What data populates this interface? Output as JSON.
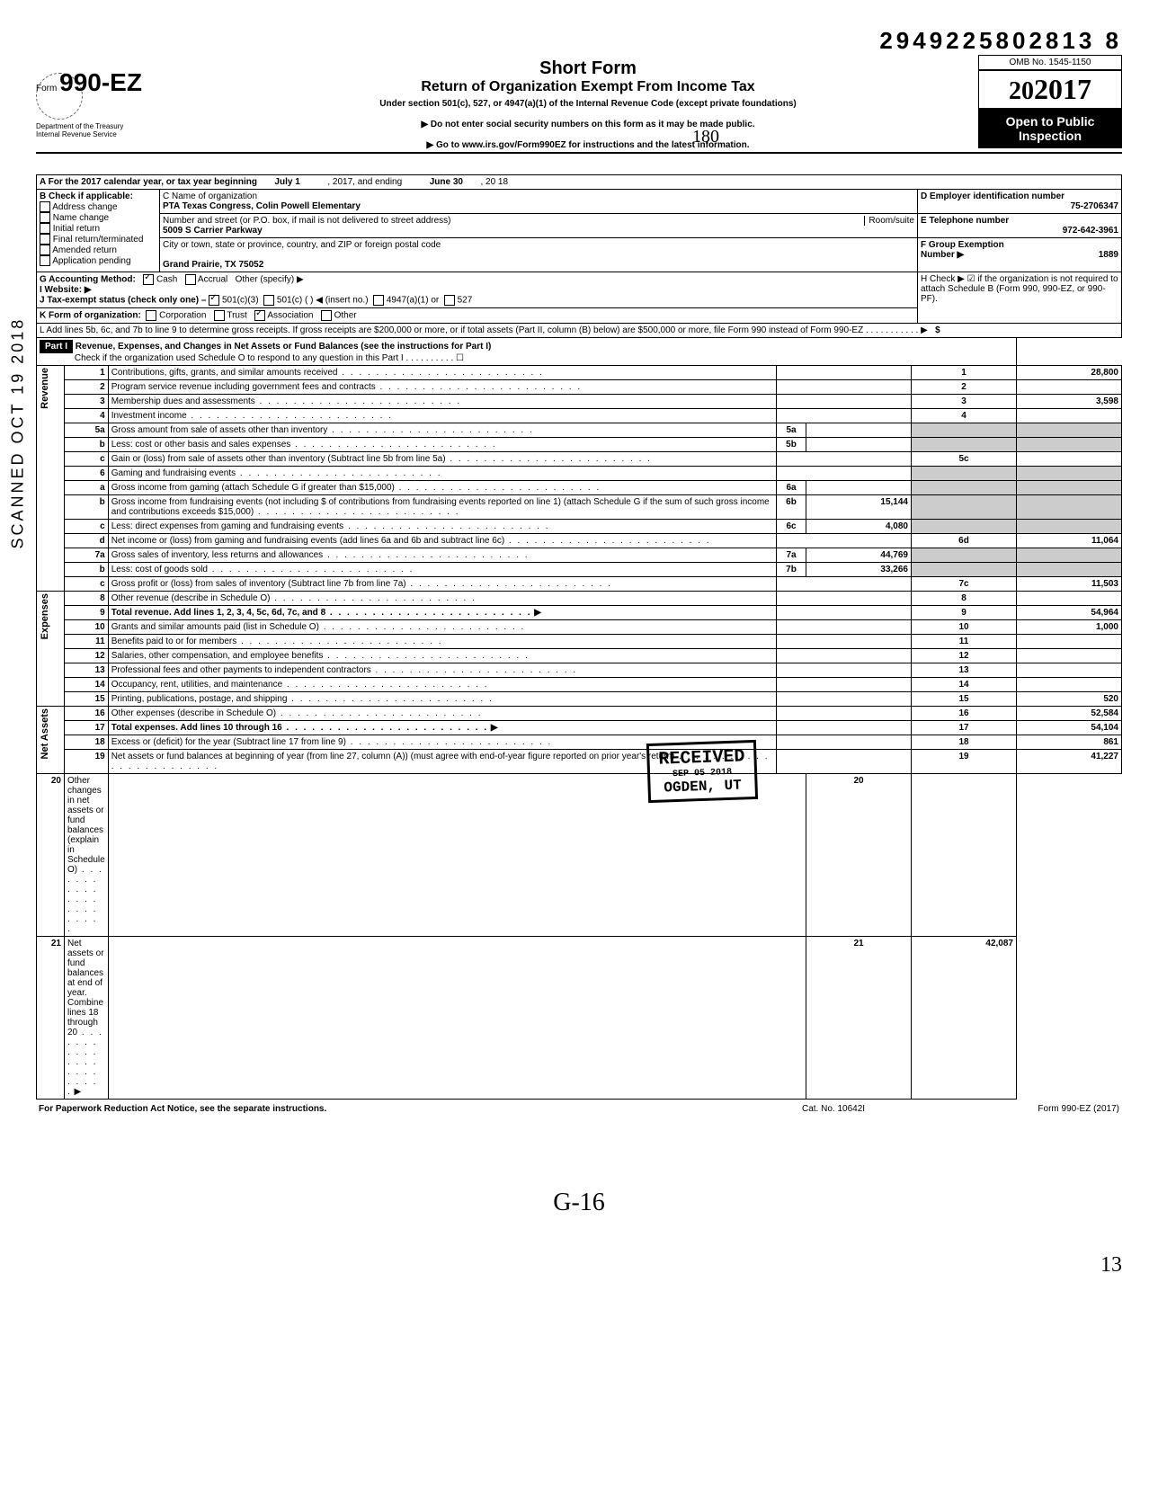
{
  "top_number": "2949225802813   8",
  "omb": "OMB No. 1545-1150",
  "year": "2017",
  "form_label": "Form",
  "form_no": "990-EZ",
  "title_short": "Short Form",
  "title_main": "Return of Organization Exempt From Income Tax",
  "title_sub": "Under section 501(c), 527, or 4947(a)(1) of the Internal Revenue Code (except private foundations)",
  "instr1": "▶ Do not enter social security numbers on this form as it may be made public.",
  "instr2": "▶ Go to www.irs.gov/Form990EZ for instructions and the latest information.",
  "dept": "Department of the Treasury\nInternal Revenue Service",
  "open": "Open to Public\nInspection",
  "rowA": {
    "label": "A For the 2017 calendar year, or tax year beginning",
    "start": "July 1",
    "mid": ", 2017, and ending",
    "end": "June 30",
    "yr": ", 20   18"
  },
  "rowB": {
    "label": "B Check if applicable:",
    "items": [
      "Address change",
      "Name change",
      "Initial return",
      "Final return/terminated",
      "Amended return",
      "Application pending"
    ]
  },
  "C_label": "C Name of organization",
  "C_val": "PTA Texas Congress, Colin Powell Elementary",
  "addr_label": "Number and street (or P.O. box, if mail is not delivered to street address)",
  "addr": "5009 S Carrier Parkway",
  "room": "Room/suite",
  "city_label": "City or town, state or province, country, and ZIP or foreign postal code",
  "city": "Grand Prairie, TX 75052",
  "D_label": "D Employer identification number",
  "D_val": "75-2706347",
  "E_label": "E Telephone number",
  "E_val": "972-642-3961",
  "F_label": "F Group Exemption\nNumber ▶",
  "F_val": "1889",
  "G": "G Accounting Method:",
  "G_cash": "Cash",
  "G_accrual": "Accrual",
  "G_other": "Other (specify) ▶",
  "H": "H Check ▶ ☑ if the organization is not required to attach Schedule B (Form 990, 990-EZ, or 990-PF).",
  "I": "I  Website: ▶",
  "J": "J Tax-exempt status (check only one) –",
  "J1": "501(c)(3)",
  "J2": "501(c) (       ) ◀ (insert no.)",
  "J3": "4947(a)(1) or",
  "J4": "527",
  "K": "K Form of organization:",
  "K1": "Corporation",
  "K2": "Trust",
  "K3": "Association",
  "K4": "Other",
  "L": "L Add lines 5b, 6c, and 7b to line 9 to determine gross receipts. If gross receipts are $200,000 or more, or if total assets (Part II, column (B) below) are $500,000 or more, file Form 990 instead of Form 990-EZ . . . . . . . . . . . ▶",
  "L_amt": "$",
  "part1": "Part I",
  "part1_title": "Revenue, Expenses, and Changes in Net Assets or Fund Balances (see the instructions for Part I)",
  "part1_sub": "Check if the organization used Schedule O to respond to any question in this Part I . . . . . . . . . . ☐",
  "lines": [
    {
      "n": "1",
      "t": "Contributions, gifts, grants, and similar amounts received",
      "a": "28,800"
    },
    {
      "n": "2",
      "t": "Program service revenue including government fees and contracts",
      "a": ""
    },
    {
      "n": "3",
      "t": "Membership dues and assessments",
      "a": "3,598"
    },
    {
      "n": "4",
      "t": "Investment income",
      "a": ""
    },
    {
      "n": "5a",
      "t": "Gross amount from sale of assets other than inventory",
      "box": "5a",
      "boxv": ""
    },
    {
      "n": "b",
      "t": "Less: cost or other basis and sales expenses",
      "box": "5b",
      "boxv": ""
    },
    {
      "n": "c",
      "t": "Gain or (loss) from sale of assets other than inventory (Subtract line 5b from line 5a)",
      "num": "5c",
      "a": ""
    },
    {
      "n": "6",
      "t": "Gaming and fundraising events"
    },
    {
      "n": "a",
      "t": "Gross income from gaming (attach Schedule G if greater than $15,000)",
      "box": "6a",
      "boxv": ""
    },
    {
      "n": "b",
      "t": "Gross income from fundraising events (not including  $                  of contributions from fundraising events reported on line 1) (attach Schedule G if the sum of such gross income and contributions exceeds $15,000)",
      "box": "6b",
      "boxv": "15,144"
    },
    {
      "n": "c",
      "t": "Less: direct expenses from gaming and fundraising events",
      "box": "6c",
      "boxv": "4,080"
    },
    {
      "n": "d",
      "t": "Net income or (loss) from gaming and fundraising events (add lines 6a and 6b and subtract line 6c)",
      "num": "6d",
      "a": "11,064"
    },
    {
      "n": "7a",
      "t": "Gross sales of inventory, less returns and allowances",
      "box": "7a",
      "boxv": "44,769"
    },
    {
      "n": "b",
      "t": "Less: cost of goods sold",
      "box": "7b",
      "boxv": "33,266"
    },
    {
      "n": "c",
      "t": "Gross profit or (loss) from sales of inventory (Subtract line 7b from line 7a)",
      "num": "7c",
      "a": "11,503"
    },
    {
      "n": "8",
      "t": "Other revenue (describe in Schedule O)",
      "num": "8",
      "a": ""
    },
    {
      "n": "9",
      "t": "Total revenue. Add lines 1, 2, 3, 4, 5c, 6d, 7c, and 8",
      "num": "9",
      "a": "54,964",
      "bold": true
    },
    {
      "n": "10",
      "t": "Grants and similar amounts paid (list in Schedule O)",
      "num": "10",
      "a": "1,000"
    },
    {
      "n": "11",
      "t": "Benefits paid to or for members",
      "num": "11",
      "a": ""
    },
    {
      "n": "12",
      "t": "Salaries, other compensation, and employee benefits",
      "num": "12",
      "a": ""
    },
    {
      "n": "13",
      "t": "Professional fees and other payments to independent contractors",
      "num": "13",
      "a": ""
    },
    {
      "n": "14",
      "t": "Occupancy, rent, utilities, and maintenance",
      "num": "14",
      "a": ""
    },
    {
      "n": "15",
      "t": "Printing, publications, postage, and shipping",
      "num": "15",
      "a": "520"
    },
    {
      "n": "16",
      "t": "Other expenses (describe in Schedule O)",
      "num": "16",
      "a": "52,584"
    },
    {
      "n": "17",
      "t": "Total expenses. Add lines 10 through 16",
      "num": "17",
      "a": "54,104",
      "bold": true
    },
    {
      "n": "18",
      "t": "Excess or (deficit) for the year (Subtract line 17 from line 9)",
      "num": "18",
      "a": "861"
    },
    {
      "n": "19",
      "t": "Net assets or fund balances at beginning of year (from line 27, column (A)) (must agree with end-of-year figure reported on prior year's return)",
      "num": "19",
      "a": "41,227"
    },
    {
      "n": "20",
      "t": "Other changes in net assets or fund balances (explain in Schedule O)",
      "num": "20",
      "a": ""
    },
    {
      "n": "21",
      "t": "Net assets or fund balances at end of year. Combine lines 18 through 20",
      "num": "21",
      "a": "42,087"
    }
  ],
  "sections": {
    "rev": "Revenue",
    "exp": "Expenses",
    "na": "Net Assets"
  },
  "footer_l": "For Paperwork Reduction Act Notice, see the separate instructions.",
  "footer_m": "Cat. No. 10642I",
  "footer_r": "Form 990-EZ (2017)",
  "stamp": {
    "l1": "RECEIVED",
    "l2": "SEP 05 2018",
    "l3": "OGDEN, UT"
  },
  "scanned": "SCANNED  OCT 19 2018",
  "hand1": "G-16",
  "hand2": "13",
  "hand_180": "180"
}
